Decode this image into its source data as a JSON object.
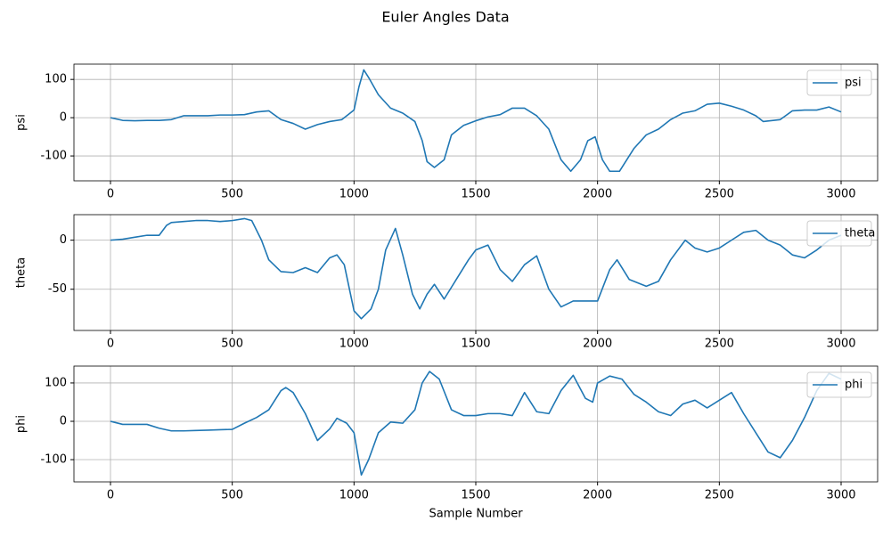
{
  "title": "Euler Angles Data",
  "chart_data": [
    {
      "type": "line",
      "ylabel": "psi",
      "grid": true,
      "legend": "upper right",
      "xlim": [
        -150,
        3150
      ],
      "ylim": [
        -165,
        140
      ],
      "xticks": [
        0,
        500,
        1000,
        1500,
        2000,
        2500,
        3000
      ],
      "yticks": [
        -100,
        0,
        100
      ],
      "x": [
        0,
        50,
        100,
        150,
        200,
        250,
        300,
        350,
        400,
        450,
        500,
        550,
        600,
        650,
        700,
        750,
        800,
        850,
        900,
        950,
        1000,
        1020,
        1040,
        1060,
        1100,
        1150,
        1200,
        1250,
        1280,
        1300,
        1330,
        1370,
        1400,
        1450,
        1500,
        1550,
        1600,
        1650,
        1700,
        1750,
        1800,
        1850,
        1890,
        1930,
        1960,
        1990,
        2020,
        2050,
        2090,
        2150,
        2200,
        2250,
        2300,
        2350,
        2400,
        2450,
        2500,
        2550,
        2600,
        2650,
        2680,
        2750,
        2800,
        2850,
        2900,
        2950,
        3000
      ],
      "series": [
        {
          "name": "psi",
          "color": "#1f77b4",
          "values": [
            0,
            -7,
            -8,
            -7,
            -7,
            -5,
            5,
            5,
            5,
            7,
            7,
            8,
            15,
            18,
            -5,
            -15,
            -30,
            -18,
            -10,
            -5,
            20,
            80,
            125,
            105,
            60,
            25,
            12,
            -10,
            -60,
            -115,
            -130,
            -110,
            -45,
            -20,
            -8,
            2,
            8,
            25,
            25,
            5,
            -30,
            -110,
            -140,
            -110,
            -60,
            -50,
            -110,
            -140,
            -140,
            -80,
            -45,
            -30,
            -5,
            12,
            18,
            35,
            38,
            30,
            20,
            5,
            -10,
            -5,
            18,
            20,
            20,
            28,
            15
          ]
        }
      ]
    },
    {
      "type": "line",
      "ylabel": "theta",
      "grid": true,
      "legend": "upper right",
      "xlim": [
        -150,
        3150
      ],
      "ylim": [
        -92,
        26
      ],
      "xticks": [
        0,
        500,
        1000,
        1500,
        2000,
        2500,
        3000
      ],
      "yticks": [
        -50,
        0
      ],
      "x": [
        0,
        50,
        100,
        150,
        200,
        230,
        250,
        300,
        350,
        400,
        450,
        500,
        550,
        580,
        620,
        650,
        700,
        750,
        800,
        850,
        900,
        930,
        960,
        1000,
        1030,
        1070,
        1100,
        1130,
        1170,
        1200,
        1240,
        1270,
        1300,
        1330,
        1370,
        1420,
        1470,
        1500,
        1550,
        1600,
        1650,
        1700,
        1750,
        1800,
        1850,
        1900,
        1950,
        2000,
        2050,
        2080,
        2130,
        2200,
        2250,
        2300,
        2360,
        2400,
        2450,
        2500,
        2550,
        2600,
        2650,
        2700,
        2750,
        2800,
        2850,
        2900,
        2950,
        3000
      ],
      "series": [
        {
          "name": "theta",
          "color": "#1f77b4",
          "values": [
            0,
            1,
            3,
            5,
            5,
            15,
            18,
            19,
            20,
            20,
            19,
            20,
            22,
            20,
            0,
            -20,
            -32,
            -33,
            -28,
            -33,
            -18,
            -15,
            -25,
            -72,
            -80,
            -70,
            -50,
            -10,
            12,
            -15,
            -55,
            -70,
            -55,
            -45,
            -60,
            -40,
            -20,
            -10,
            -5,
            -30,
            -42,
            -25,
            -16,
            -50,
            -68,
            -62,
            -62,
            -62,
            -30,
            -20,
            -40,
            -47,
            -42,
            -20,
            0,
            -8,
            -12,
            -8,
            0,
            8,
            10,
            0,
            -5,
            -15,
            -18,
            -10,
            0,
            5
          ]
        }
      ]
    },
    {
      "type": "line",
      "ylabel": "phi",
      "xlabel": "Sample Number",
      "grid": true,
      "legend": "upper right",
      "xlim": [
        -150,
        3150
      ],
      "ylim": [
        -158,
        144
      ],
      "xticks": [
        0,
        500,
        1000,
        1500,
        2000,
        2500,
        3000
      ],
      "yticks": [
        -100,
        0,
        100
      ],
      "x": [
        0,
        50,
        100,
        150,
        200,
        250,
        300,
        350,
        400,
        450,
        500,
        550,
        600,
        650,
        700,
        720,
        750,
        800,
        850,
        900,
        930,
        970,
        1000,
        1030,
        1060,
        1100,
        1150,
        1200,
        1250,
        1280,
        1310,
        1350,
        1400,
        1450,
        1500,
        1550,
        1600,
        1650,
        1700,
        1750,
        1800,
        1850,
        1900,
        1950,
        1980,
        2000,
        2050,
        2100,
        2150,
        2200,
        2250,
        2300,
        2350,
        2400,
        2450,
        2500,
        2550,
        2600,
        2650,
        2700,
        2750,
        2800,
        2850,
        2900,
        2950,
        3000
      ],
      "series": [
        {
          "name": "phi",
          "color": "#1f77b4",
          "values": [
            0,
            -8,
            -8,
            -8,
            -18,
            -25,
            -25,
            -24,
            -23,
            -22,
            -21,
            -5,
            10,
            30,
            80,
            88,
            75,
            20,
            -50,
            -20,
            8,
            -5,
            -30,
            -140,
            -100,
            -30,
            -2,
            -5,
            30,
            100,
            130,
            110,
            30,
            15,
            15,
            20,
            20,
            15,
            75,
            25,
            20,
            80,
            120,
            60,
            50,
            100,
            118,
            110,
            70,
            50,
            25,
            15,
            45,
            55,
            35,
            55,
            75,
            20,
            -30,
            -80,
            -95,
            -50,
            10,
            80,
            125,
            110
          ]
        }
      ]
    }
  ]
}
